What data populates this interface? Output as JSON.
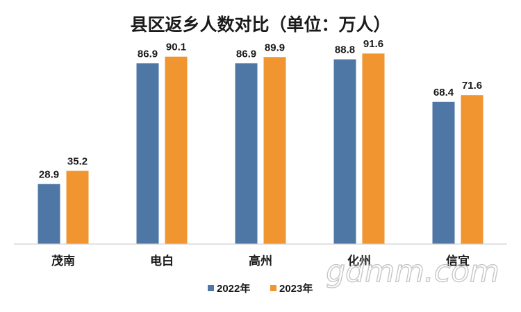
{
  "chart_data": {
    "type": "bar",
    "title": "县区返乡人数对比（单位：万人）",
    "categories": [
      "茂南",
      "电白",
      "高州",
      "化州",
      "信宜"
    ],
    "series": [
      {
        "name": "2022年",
        "values": [
          28.9,
          86.9,
          86.9,
          88.8,
          68.4
        ]
      },
      {
        "name": "2023年",
        "values": [
          35.2,
          90.1,
          89.9,
          91.6,
          71.6
        ]
      }
    ],
    "ylim": [
      0,
      100
    ],
    "grid": false,
    "legend_position": "bottom"
  },
  "colors": {
    "series": [
      "#4f77a6",
      "#f0952f"
    ]
  },
  "watermark": "gdmm.com"
}
